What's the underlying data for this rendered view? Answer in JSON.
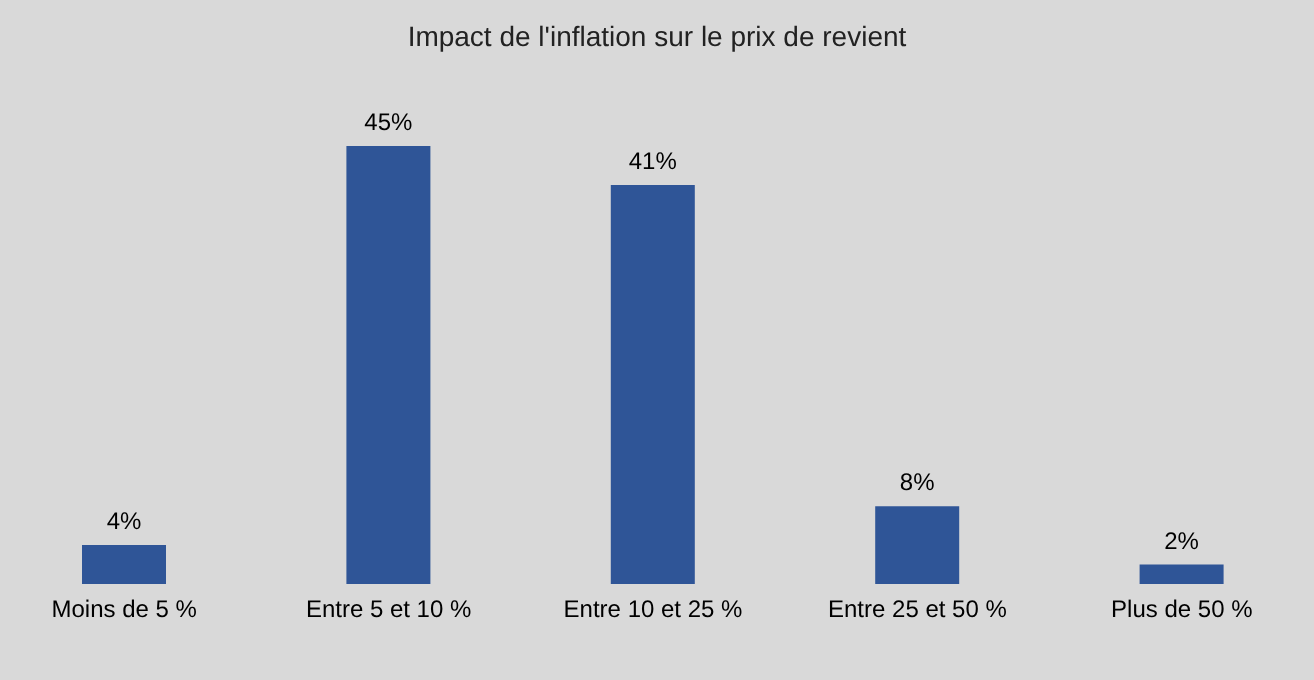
{
  "chart_data": {
    "type": "bar",
    "title": "Impact de l'inflation sur le prix de revient",
    "categories": [
      "Moins de 5 %",
      "Entre 5 et 10 %",
      "Entre 10 et 25 %",
      "Entre 25 et 50 %",
      "Plus de 50 %"
    ],
    "values": [
      4,
      45,
      41,
      8,
      2
    ],
    "value_labels": [
      "4%",
      "45%",
      "41%",
      "8%",
      "2%"
    ],
    "color": "#2f5597"
  }
}
